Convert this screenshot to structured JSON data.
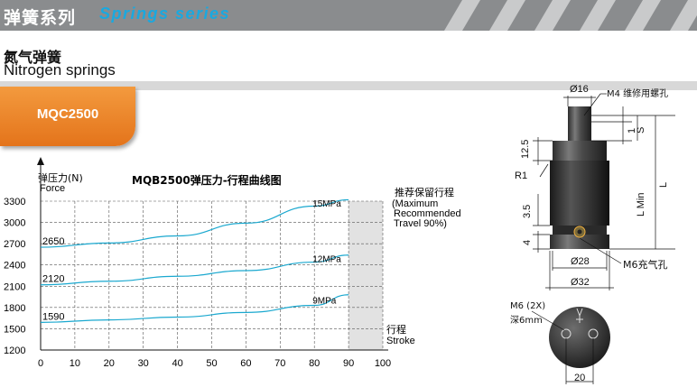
{
  "banner": {
    "title_cn": "弹簧系列",
    "title_en": "Springs series",
    "background_color": "#8a8c8e",
    "title_en_color": "#19a9e0"
  },
  "heading": {
    "cn": "氮气弹簧",
    "en": "Nitrogen springs"
  },
  "model": {
    "label": "MQC2500",
    "tab_color": "#ef8a2e"
  },
  "chart_data": {
    "type": "line",
    "title": "MQB2500弹压力-行程曲线图",
    "ylabel_cn": "弹压力(N)",
    "ylabel_en": "Force",
    "xlabel_cn": "行程",
    "xlabel_en": "Stroke",
    "x_ticks": [
      0,
      10,
      20,
      30,
      40,
      50,
      60,
      70,
      80,
      90,
      100
    ],
    "y_ticks": [
      1200,
      1500,
      1800,
      2100,
      2400,
      2700,
      3000,
      3300
    ],
    "xlim": [
      0,
      100
    ],
    "ylim": [
      1200,
      3300
    ],
    "grid": true,
    "line_color": "#1aa8cf",
    "reserved_region": {
      "x_from": 90,
      "x_to": 100,
      "label_cn": "推荐保留行程",
      "label_en": [
        "(Maximum",
        "Recommended",
        "Travel 90%)"
      ]
    },
    "series": [
      {
        "name": "15MPa",
        "start_label": "2650",
        "x": [
          0,
          20,
          40,
          60,
          80,
          90
        ],
        "y": [
          2650,
          2710,
          2810,
          2990,
          3230,
          3320
        ]
      },
      {
        "name": "12MPa",
        "start_label": "2120",
        "x": [
          0,
          20,
          40,
          60,
          80,
          90
        ],
        "y": [
          2120,
          2170,
          2240,
          2320,
          2440,
          2540
        ]
      },
      {
        "name": "9MPa",
        "start_label": "1590",
        "x": [
          0,
          20,
          40,
          60,
          80,
          90
        ],
        "y": [
          1590,
          1625,
          1665,
          1730,
          1830,
          1980
        ]
      }
    ]
  },
  "drawing": {
    "dia_top": "Ø16",
    "thread_note": "M4 维修用螺孔",
    "dim_12_5": "12.5",
    "radius": "R1",
    "dim_1": "1",
    "dim_s": "S",
    "dim_l_min": "L Min",
    "dim_l": "L",
    "dim_3_5": "3.5",
    "dim_4": "4",
    "dia_28": "Ø28",
    "charge_hole": "M6充气孔",
    "dia_32": "Ø32",
    "base_thread": "M6 (2X)",
    "base_depth": "深6mm",
    "base_spacing": "20"
  }
}
